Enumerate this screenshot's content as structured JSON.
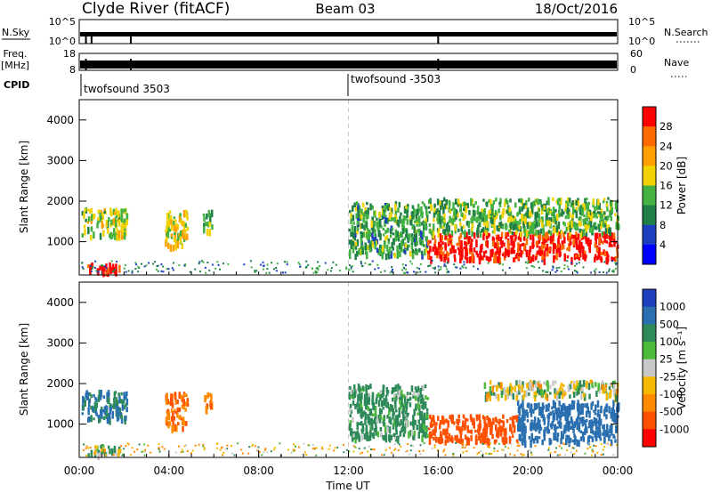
{
  "header": {
    "station": "Clyde River (fitACF)",
    "beam": "Beam 03",
    "date": "18/Oct/2016"
  },
  "top_panels": {
    "nsky_label": "N.Sky",
    "nsky_ticks": [
      "10^5",
      "10^0"
    ],
    "nsearch_label": "N.Search",
    "nsearch_ticks": [
      "10^5",
      "10^0"
    ],
    "freq_label": [
      "Freq.",
      "[MHz]"
    ],
    "freq_ticks": [
      "18",
      "8"
    ],
    "nave_label": "Nave",
    "nave_ticks": [
      "60",
      "0"
    ],
    "cpid_label": "CPID",
    "cpid_segments": [
      {
        "label": "twofsound 3503",
        "start_hour": 0
      },
      {
        "label": "twofsound -3503",
        "start_hour": 12
      }
    ]
  },
  "chart_data": [
    {
      "type": "heatmap",
      "quantity": "Power",
      "ylabel": "Slant Range [km]",
      "ylim": [
        180,
        4500
      ],
      "y_ticks": [
        1000,
        2000,
        3000,
        4000
      ],
      "colorbar_label": "Power [dB]",
      "colorbar_ticks": [
        "28",
        "24",
        "20",
        "16",
        "12",
        "8",
        "4"
      ],
      "colorbar_colors": [
        "#ff0000",
        "#ff6a00",
        "#ffa000",
        "#f2d200",
        "#43b243",
        "#1f7f47",
        "#1b3fbf",
        "#0000ff"
      ],
      "regions": [
        {
          "t0": 0.1,
          "t1": 2.1,
          "r0": 1150,
          "r1": 1850,
          "level": 14
        },
        {
          "t0": 0.3,
          "t1": 1.8,
          "r0": 250,
          "r1": 500,
          "level": 30
        },
        {
          "t0": 3.8,
          "t1": 4.8,
          "r0": 900,
          "r1": 1800,
          "level": 16
        },
        {
          "t0": 5.5,
          "t1": 5.9,
          "r0": 1300,
          "r1": 1800,
          "level": 12
        },
        {
          "t0": 12.0,
          "t1": 15.5,
          "r0": 700,
          "r1": 2000,
          "level": 10
        },
        {
          "t0": 15.5,
          "t1": 24.0,
          "r0": 600,
          "r1": 1250,
          "level": 28
        },
        {
          "t0": 15.5,
          "t1": 24.0,
          "r0": 1250,
          "r1": 2100,
          "level": 12
        }
      ]
    },
    {
      "type": "heatmap",
      "quantity": "Velocity",
      "ylabel": "Slant Range [km]",
      "xlabel": "Time UT",
      "ylim": [
        180,
        4500
      ],
      "y_ticks": [
        1000,
        2000,
        3000,
        4000
      ],
      "x_ticks": [
        "00:00",
        "04:00",
        "08:00",
        "12:00",
        "16:00",
        "20:00",
        "00:00"
      ],
      "colorbar_label": "Velocity [m s⁻¹]",
      "colorbar_ticks": [
        "1000",
        "500",
        "100",
        "25",
        "-25",
        "-100",
        "-500",
        "-1000"
      ],
      "colorbar_colors": [
        "#1f3fbf",
        "#2a6fb0",
        "#2f8a5a",
        "#4dbb3a",
        "#c8c8c8",
        "#f5b800",
        "#ff8a00",
        "#ff5000",
        "#ff0000"
      ],
      "regions": [
        {
          "t0": 0.1,
          "t1": 2.1,
          "r0": 1150,
          "r1": 1850,
          "vel": 300
        },
        {
          "t0": 0.3,
          "t1": 1.8,
          "r0": 250,
          "r1": 500,
          "vel": 80
        },
        {
          "t0": 3.8,
          "t1": 4.8,
          "r0": 900,
          "r1": 1800,
          "vel": -400
        },
        {
          "t0": 5.5,
          "t1": 5.9,
          "r0": 1300,
          "r1": 1800,
          "vel": -300
        },
        {
          "t0": 12.0,
          "t1": 15.5,
          "r0": 700,
          "r1": 2000,
          "vel": 150
        },
        {
          "t0": 15.5,
          "t1": 19.5,
          "r0": 600,
          "r1": 1250,
          "vel": -600
        },
        {
          "t0": 19.5,
          "t1": 24.0,
          "r0": 600,
          "r1": 1600,
          "vel": 450
        },
        {
          "t0": 18.0,
          "t1": 24.0,
          "r0": 1700,
          "r1": 2100,
          "vel": 10
        }
      ]
    }
  ]
}
